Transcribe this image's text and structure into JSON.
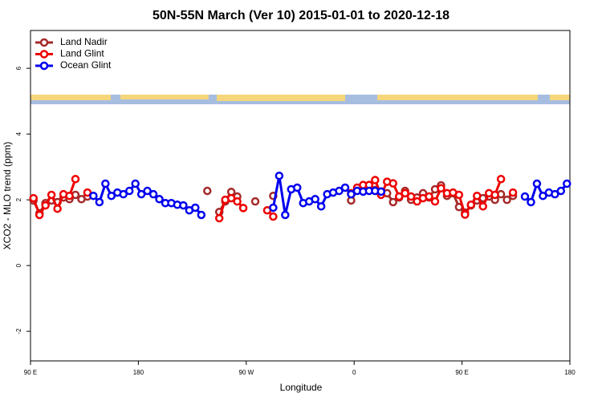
{
  "chart_data": {
    "type": "line",
    "title": "50N-55N March (Ver 10)   2015-01-01 to 2020-12-18",
    "x_label": "Longitude",
    "y_label": "XCO2 - MLO trend (ppm)",
    "legend": "topleft",
    "xlim": [
      90,
      540
    ],
    "xticks": [
      {
        "value": 90,
        "label": "90 E"
      },
      180,
      {
        "value": 270,
        "label": "90 W"
      },
      {
        "value": 360,
        "label": "0"
      },
      {
        "value": 450,
        "label": "90 E"
      },
      {
        "value": 540,
        "label": "180"
      }
    ],
    "ylim": [
      -2.9,
      7.15
    ],
    "yticks": [
      -2,
      0,
      2,
      4,
      6
    ],
    "x": [
      92.5,
      97.5,
      102.5,
      107.5,
      112.5,
      117.5,
      122.5,
      127.5,
      132.5,
      137.5,
      142.5,
      147.5,
      152.5,
      157.5,
      162.5,
      167.5,
      172.5,
      177.5,
      182.5,
      187.5,
      192.5,
      197.5,
      202.5,
      207.5,
      212.5,
      217.5,
      222.5,
      227.5,
      232.5,
      237.5,
      242.5,
      247.5,
      252.5,
      257.5,
      262.5,
      267.5,
      272.5,
      277.5,
      282.5,
      287.5,
      292.5,
      297.5,
      302.5,
      307.5,
      312.5,
      317.5,
      322.5,
      327.5,
      332.5,
      337.5,
      342.5,
      347.5,
      352.5,
      357.5,
      362.5,
      367.5,
      372.5,
      377.5,
      382.5,
      387.5,
      392.5,
      397.5,
      402.5,
      407.5,
      412.5,
      417.5,
      422.5,
      427.5,
      432.5,
      437.5,
      442.5,
      447.5,
      452.5,
      457.5,
      462.5,
      467.5,
      472.5,
      477.5,
      482.5,
      487.5,
      492.5,
      497.5,
      502.5,
      507.5,
      512.5,
      517.5,
      522.5,
      527.5,
      532.5,
      537.5
    ],
    "series": [
      {
        "name": "Land Nadir",
        "color": "#a52a2a",
        "values": [
          1.98,
          1.59,
          1.9,
          1.98,
          1.93,
          2.07,
          2.02,
          2.15,
          2.02,
          2.1,
          null,
          null,
          null,
          null,
          null,
          null,
          null,
          null,
          null,
          null,
          null,
          null,
          null,
          null,
          null,
          null,
          null,
          null,
          null,
          2.27,
          null,
          1.63,
          1.95,
          2.24,
          2.1,
          null,
          null,
          1.95,
          null,
          null,
          2.12,
          null,
          null,
          null,
          null,
          null,
          null,
          null,
          null,
          null,
          null,
          null,
          null,
          1.98,
          2.3,
          2.35,
          2.32,
          2.3,
          2.25,
          2.2,
          1.93,
          2.07,
          2.27,
          2.0,
          2.07,
          2.2,
          2.07,
          2.32,
          2.44,
          2.12,
          2.2,
          1.78,
          1.61,
          1.83,
          1.98,
          2.05,
          2.1,
          2.0,
          2.17,
          2.0,
          2.12,
          null,
          null,
          null,
          null,
          null,
          null,
          null,
          null,
          null
        ]
      },
      {
        "name": "Land Glint",
        "color": "#ee0000",
        "values": [
          2.05,
          1.54,
          1.83,
          2.15,
          1.73,
          2.17,
          2.12,
          2.63,
          null,
          2.22,
          null,
          null,
          null,
          null,
          null,
          null,
          null,
          null,
          null,
          null,
          null,
          null,
          null,
          null,
          null,
          null,
          null,
          null,
          null,
          null,
          null,
          1.44,
          2.0,
          2.05,
          1.95,
          1.75,
          null,
          null,
          null,
          1.68,
          1.49,
          null,
          null,
          null,
          null,
          null,
          null,
          null,
          null,
          null,
          null,
          null,
          null,
          2.2,
          2.37,
          2.45,
          2.45,
          2.6,
          2.15,
          2.55,
          2.5,
          2.1,
          2.2,
          2.1,
          1.95,
          2.05,
          2.1,
          1.95,
          2.35,
          2.2,
          2.22,
          2.15,
          1.55,
          1.85,
          2.12,
          1.8,
          2.2,
          2.15,
          2.63,
          null,
          2.22,
          null,
          null,
          null,
          null,
          null,
          null,
          null,
          null,
          null
        ]
      },
      {
        "name": "Ocean Glint",
        "color": "#0000ee",
        "values": [
          null,
          null,
          null,
          null,
          null,
          null,
          null,
          null,
          null,
          null,
          2.12,
          1.93,
          2.49,
          2.12,
          2.22,
          2.17,
          2.27,
          2.49,
          2.17,
          2.27,
          2.17,
          2.02,
          1.9,
          1.9,
          1.85,
          1.83,
          1.68,
          1.76,
          1.54,
          null,
          null,
          null,
          null,
          null,
          null,
          null,
          null,
          null,
          null,
          null,
          1.76,
          2.73,
          1.54,
          2.32,
          2.37,
          1.9,
          1.95,
          2.02,
          1.8,
          2.17,
          2.22,
          2.27,
          2.37,
          2.17,
          2.27,
          2.25,
          2.27,
          2.27,
          2.25,
          null,
          null,
          null,
          null,
          null,
          null,
          null,
          null,
          null,
          null,
          null,
          null,
          null,
          null,
          null,
          null,
          null,
          null,
          null,
          null,
          null,
          null,
          null,
          2.1,
          1.93,
          2.49,
          2.12,
          2.22,
          2.17,
          2.27,
          2.49
        ]
      }
    ]
  }
}
